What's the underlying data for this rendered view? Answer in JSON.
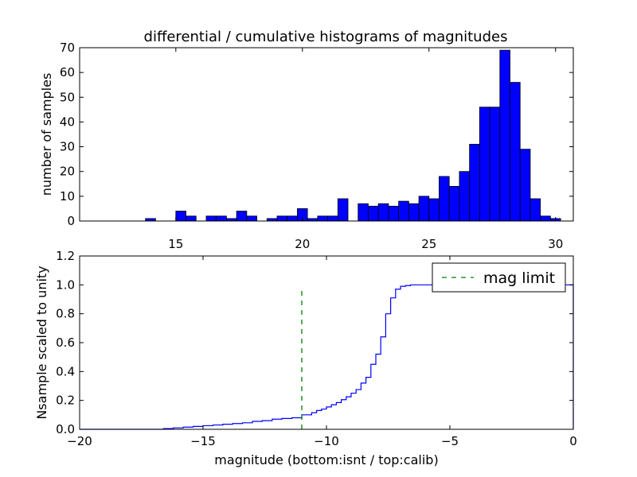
{
  "chart_data": [
    {
      "type": "bar",
      "title": "differential / cumulative histograms of magnitudes",
      "xlabel": "",
      "ylabel": "number of samples",
      "xlim": [
        11.2,
        30.7
      ],
      "ylim": [
        0,
        70
      ],
      "xticks": [
        15,
        20,
        25,
        30
      ],
      "yticks": [
        0,
        10,
        20,
        30,
        40,
        50,
        60,
        70
      ],
      "bin_width": 0.4,
      "bar_color": "#0000ff",
      "bins": [
        {
          "x": 13.8,
          "count": 1
        },
        {
          "x": 15.0,
          "count": 4
        },
        {
          "x": 15.4,
          "count": 2
        },
        {
          "x": 16.2,
          "count": 2
        },
        {
          "x": 16.6,
          "count": 2
        },
        {
          "x": 17.0,
          "count": 1
        },
        {
          "x": 17.4,
          "count": 4
        },
        {
          "x": 17.8,
          "count": 2
        },
        {
          "x": 18.6,
          "count": 1
        },
        {
          "x": 19.0,
          "count": 2
        },
        {
          "x": 19.4,
          "count": 2
        },
        {
          "x": 19.8,
          "count": 5
        },
        {
          "x": 20.2,
          "count": 1
        },
        {
          "x": 20.6,
          "count": 2
        },
        {
          "x": 21.0,
          "count": 2
        },
        {
          "x": 21.4,
          "count": 9
        },
        {
          "x": 22.2,
          "count": 7
        },
        {
          "x": 22.6,
          "count": 6
        },
        {
          "x": 23.0,
          "count": 7
        },
        {
          "x": 23.4,
          "count": 6
        },
        {
          "x": 23.8,
          "count": 8
        },
        {
          "x": 24.2,
          "count": 7
        },
        {
          "x": 24.6,
          "count": 10
        },
        {
          "x": 25.0,
          "count": 9
        },
        {
          "x": 25.4,
          "count": 18
        },
        {
          "x": 25.8,
          "count": 14
        },
        {
          "x": 26.2,
          "count": 20
        },
        {
          "x": 26.6,
          "count": 31
        },
        {
          "x": 27.0,
          "count": 46
        },
        {
          "x": 27.4,
          "count": 46
        },
        {
          "x": 27.8,
          "count": 69
        },
        {
          "x": 28.2,
          "count": 56
        },
        {
          "x": 28.6,
          "count": 29
        },
        {
          "x": 29.0,
          "count": 9
        },
        {
          "x": 29.4,
          "count": 2
        },
        {
          "x": 29.8,
          "count": 1
        }
      ]
    },
    {
      "type": "line",
      "title": "",
      "xlabel": "magnitude (bottom:isnt / top:calib)",
      "ylabel": "Nsample scaled to unity",
      "xlim": [
        -20,
        0
      ],
      "ylim": [
        0,
        1.2
      ],
      "xticks": [
        -20,
        -15,
        -10,
        -5,
        0
      ],
      "yticks": [
        0.0,
        0.2,
        0.4,
        0.6,
        0.8,
        1.0,
        1.2
      ],
      "ytick_labels": [
        "0.0",
        "0.2",
        "0.4",
        "0.6",
        "0.8",
        "1.0",
        "1.2"
      ],
      "legend_position": "top-right",
      "series": [
        {
          "name": "",
          "style": "steps",
          "color": "#0000ff",
          "x": [
            -20,
            -16.6,
            -16.2,
            -15.8,
            -15.4,
            -15.0,
            -14.6,
            -14.2,
            -13.8,
            -13.4,
            -13.0,
            -12.6,
            -12.2,
            -11.8,
            -11.4,
            -11.0,
            -10.6,
            -10.4,
            -10.2,
            -10.0,
            -9.8,
            -9.6,
            -9.4,
            -9.2,
            -9.0,
            -8.8,
            -8.6,
            -8.4,
            -8.2,
            -8.0,
            -7.8,
            -7.6,
            -7.4,
            -7.2,
            -7.0,
            -6.8,
            -6.6,
            -6.4,
            -6.2,
            -6.0,
            -5.0,
            -3.0,
            -1.0,
            0.0
          ],
          "y": [
            0.0,
            0.005,
            0.01,
            0.015,
            0.02,
            0.025,
            0.03,
            0.035,
            0.04,
            0.045,
            0.055,
            0.06,
            0.07,
            0.075,
            0.08,
            0.1,
            0.115,
            0.13,
            0.14,
            0.155,
            0.17,
            0.185,
            0.205,
            0.225,
            0.25,
            0.275,
            0.32,
            0.36,
            0.45,
            0.52,
            0.64,
            0.8,
            0.91,
            0.97,
            0.99,
            0.995,
            1.0,
            1.0,
            1.0,
            1.0,
            1.0,
            1.0,
            1.0,
            1.0
          ]
        },
        {
          "name": "mag limit",
          "style": "dashed",
          "color": "#008000",
          "x": [
            -11,
            -11
          ],
          "y": [
            0,
            0.97
          ]
        }
      ]
    }
  ]
}
